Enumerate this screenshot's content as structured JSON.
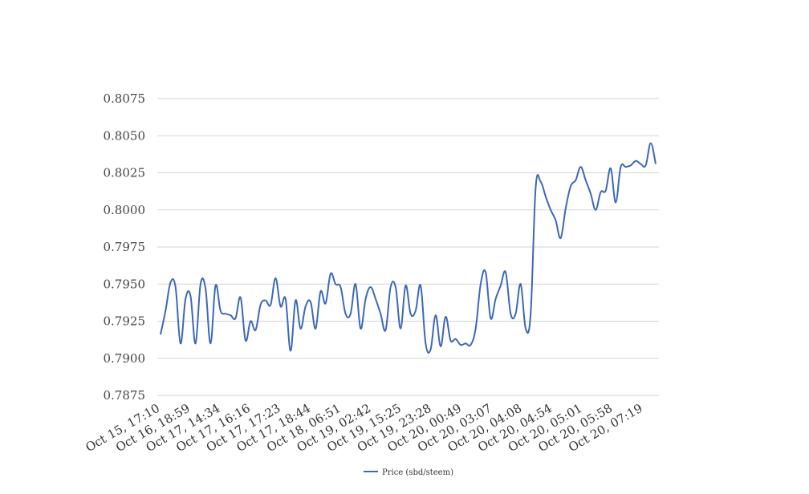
{
  "chart_data": {
    "type": "line",
    "title": "",
    "xlabel": "",
    "ylabel": "",
    "ylim": [
      0.7875,
      0.8075
    ],
    "y_ticks": [
      "0.8075",
      "0.8050",
      "0.8025",
      "0.8000",
      "0.7975",
      "0.7950",
      "0.7925",
      "0.7900",
      "0.7875"
    ],
    "x_tick_labels": [
      "Oct 15, 17:10",
      "Oct 16, 18:59",
      "Oct 17, 14:34",
      "Oct 17, 16:16",
      "Oct 17, 17:23",
      "Oct 17, 18:44",
      "Oct 18, 06:51",
      "Oct 19, 02:42",
      "Oct 19, 15:25",
      "Oct 19, 23:28",
      "Oct 20, 00:49",
      "Oct 20, 03:07",
      "Oct 20, 04:08",
      "Oct 20, 04:54",
      "Oct 20, 05:01",
      "Oct 20, 05:58",
      "Oct 20, 07:19"
    ],
    "grid": true,
    "legend": "bottom-center",
    "series": [
      {
        "name": "Price (sbd/steem)",
        "color": "#3c68b8",
        "values": [
          0.7916,
          0.7932,
          0.7951,
          0.7948,
          0.791,
          0.794,
          0.7942,
          0.791,
          0.795,
          0.7947,
          0.791,
          0.7949,
          0.7932,
          0.793,
          0.7929,
          0.7927,
          0.7941,
          0.7912,
          0.7925,
          0.7919,
          0.7936,
          0.7939,
          0.7936,
          0.7954,
          0.7935,
          0.794,
          0.7905,
          0.7939,
          0.792,
          0.7935,
          0.7938,
          0.792,
          0.7945,
          0.7937,
          0.7957,
          0.795,
          0.7948,
          0.793,
          0.793,
          0.795,
          0.792,
          0.794,
          0.7948,
          0.794,
          0.793,
          0.7919,
          0.7948,
          0.7948,
          0.792,
          0.7949,
          0.793,
          0.7932,
          0.7949,
          0.791,
          0.7906,
          0.7929,
          0.7908,
          0.7928,
          0.7912,
          0.7913,
          0.7909,
          0.791,
          0.7909,
          0.792,
          0.795,
          0.7958,
          0.7927,
          0.794,
          0.7949,
          0.7958,
          0.793,
          0.793,
          0.795,
          0.792,
          0.793,
          0.8015,
          0.8019,
          0.8009,
          0.8,
          0.7993,
          0.7981,
          0.8001,
          0.8016,
          0.802,
          0.8029,
          0.802,
          0.8011,
          0.8,
          0.8012,
          0.8013,
          0.8028,
          0.8005,
          0.8029,
          0.8029,
          0.803,
          0.8033,
          0.8031,
          0.803,
          0.8045,
          0.8031
        ]
      }
    ]
  }
}
